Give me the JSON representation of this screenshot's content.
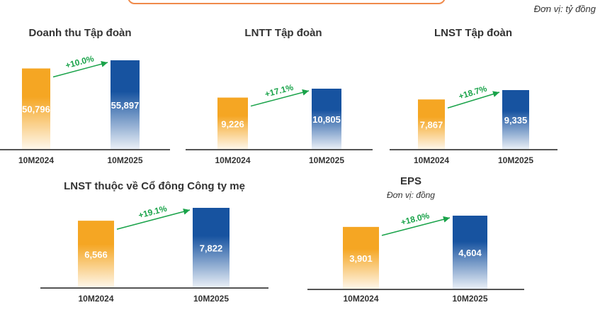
{
  "unit_label": "Đơn vị: tỷ đồng",
  "colors": {
    "prev": "#f5a623",
    "curr": "#1753a0",
    "growth": "#1aa34a",
    "axis": "#555555"
  },
  "chart_data": [
    {
      "type": "bar",
      "title": "Doanh thu Tập đoàn",
      "categories": [
        "10M2024",
        "10M2025"
      ],
      "values": [
        50796,
        55897
      ],
      "value_labels": [
        "50,796",
        "55,897"
      ],
      "growth": "+10.0%"
    },
    {
      "type": "bar",
      "title": "LNTT Tập đoàn",
      "categories": [
        "10M2024",
        "10M2025"
      ],
      "values": [
        9226,
        10805
      ],
      "value_labels": [
        "9,226",
        "10,805"
      ],
      "growth": "+17.1%"
    },
    {
      "type": "bar",
      "title": "LNST Tập đoàn",
      "categories": [
        "10M2024",
        "10M2025"
      ],
      "values": [
        7867,
        9335
      ],
      "value_labels": [
        "7,867",
        "9,335"
      ],
      "growth": "+18.7%"
    },
    {
      "type": "bar",
      "title": "LNST thuộc về Cổ đông Công ty mẹ",
      "categories": [
        "10M2024",
        "10M2025"
      ],
      "values": [
        6566,
        7822
      ],
      "value_labels": [
        "6,566",
        "7,822"
      ],
      "growth": "+19.1%"
    },
    {
      "type": "bar",
      "title": "EPS",
      "subtitle": "Đơn vị: đồng",
      "categories": [
        "10M2024",
        "10M2025"
      ],
      "values": [
        3901,
        4604
      ],
      "value_labels": [
        "3,901",
        "4,604"
      ],
      "growth": "+18.0%"
    }
  ]
}
